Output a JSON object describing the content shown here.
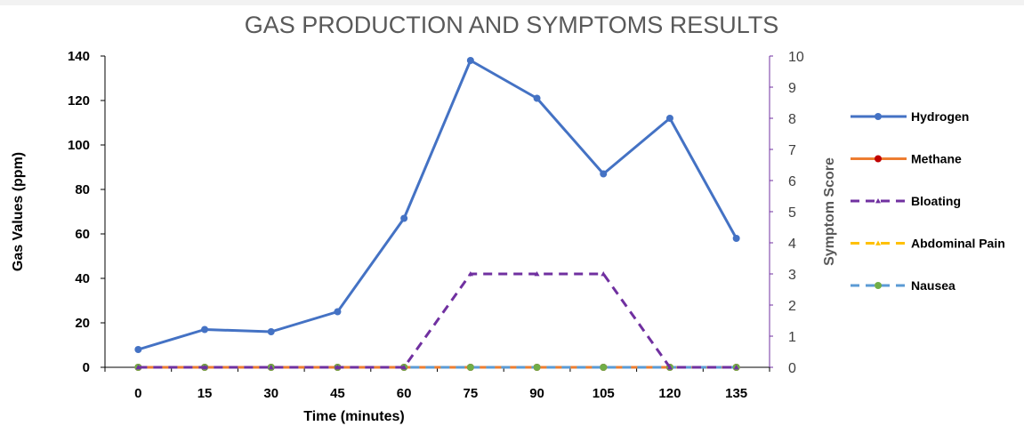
{
  "chart_data": {
    "type": "line",
    "title": "GAS PRODUCTION AND SYMPTOMS RESULTS",
    "xlabel": "Time (minutes)",
    "ylabel": "Gas Values (ppm)",
    "y2label": "Symptom Score",
    "categories": [
      "0",
      "15",
      "30",
      "45",
      "60",
      "75",
      "90",
      "105",
      "120",
      "135"
    ],
    "ylim": [
      0,
      140
    ],
    "yticks": [
      "0",
      "20",
      "40",
      "60",
      "80",
      "100",
      "120",
      "140"
    ],
    "y2lim": [
      0,
      10
    ],
    "y2ticks": [
      "0",
      "1",
      "2",
      "3",
      "4",
      "5",
      "6",
      "7",
      "8",
      "9",
      "10"
    ],
    "grid": false,
    "legend_position": "right",
    "series": [
      {
        "name": "Hydrogen",
        "axis": "left",
        "color": "#4472C4",
        "style": "solid",
        "marker": "circle",
        "values": [
          8,
          17,
          16,
          25,
          67,
          138,
          121,
          87,
          112,
          58
        ]
      },
      {
        "name": "Methane",
        "axis": "left",
        "color": "#ED7D31",
        "marker_color": "#C00000",
        "style": "solid",
        "marker": "circle",
        "values": [
          0,
          0,
          0,
          0,
          0,
          0,
          0,
          0,
          0,
          0
        ]
      },
      {
        "name": "Bloating",
        "axis": "right",
        "color": "#7030A0",
        "style": "dashed",
        "marker": "triangle",
        "values": [
          0,
          0,
          0,
          0,
          0,
          3,
          3,
          3,
          0,
          0
        ]
      },
      {
        "name": "Abdominal Pain",
        "axis": "right",
        "color": "#FFC000",
        "style": "dashed",
        "marker": "triangle",
        "values": [
          0,
          0,
          0,
          0,
          0,
          0,
          0,
          0,
          0,
          0
        ]
      },
      {
        "name": "Nausea",
        "axis": "right",
        "color": "#5B9BD5",
        "marker_color": "#70AD47",
        "style": "dashed",
        "marker": "circle",
        "values": [
          0,
          0,
          0,
          0,
          0,
          0,
          0,
          0,
          0,
          0
        ]
      }
    ]
  }
}
